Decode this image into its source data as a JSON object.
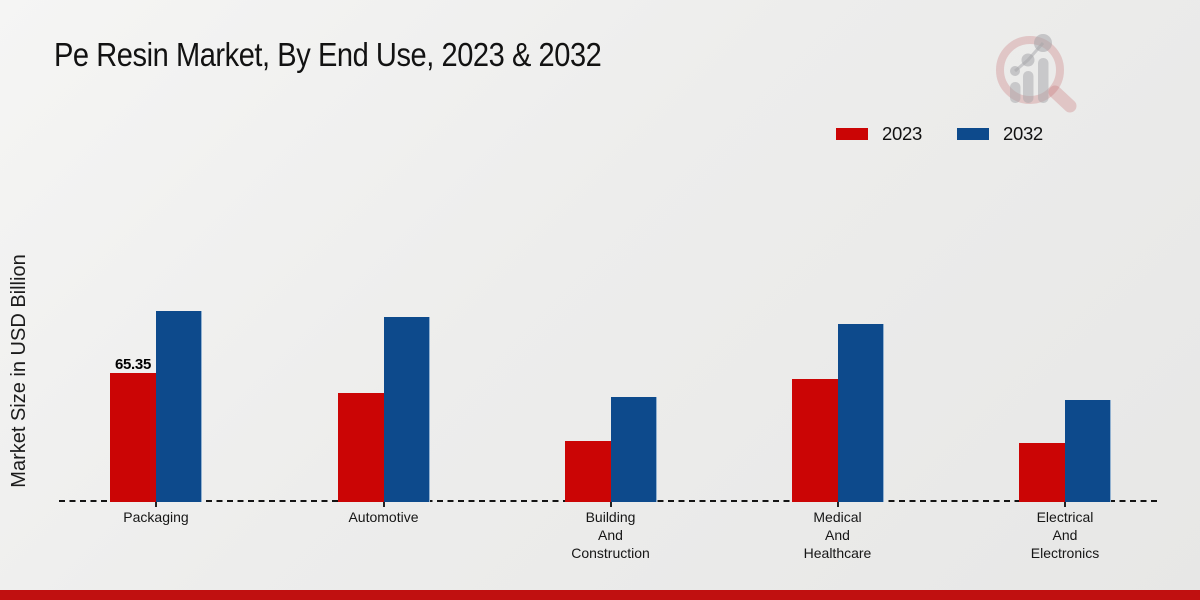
{
  "chart_data": {
    "type": "bar",
    "title": "Pe Resin Market, By End Use, 2023 & 2032",
    "xlabel": "",
    "ylabel": "Market Size in USD Billion",
    "categories": [
      "Packaging",
      "Automotive",
      "Building\nAnd\nConstruction",
      "Medical\nAnd\nHealthcare",
      "Electrical\nAnd\nElectronics"
    ],
    "series": [
      {
        "name": "2023",
        "color": "#cb0505",
        "values": [
          65.35,
          55.1,
          31.0,
          62.7,
          30.2
        ]
      },
      {
        "name": "2032",
        "color": "#0d4a8c",
        "values": [
          97.0,
          94.0,
          53.3,
          90.2,
          51.6
        ]
      }
    ],
    "data_labels": [
      {
        "series": "2023",
        "category": "Packaging",
        "text": "65.35"
      }
    ],
    "ylim": [
      0,
      110
    ],
    "grid": false,
    "baseline_style": "dashed",
    "legend_position": "top-right"
  },
  "footer": {
    "band_color": "#c01010"
  },
  "logo": {
    "icon": "magnifier-growth-chart-logo"
  }
}
